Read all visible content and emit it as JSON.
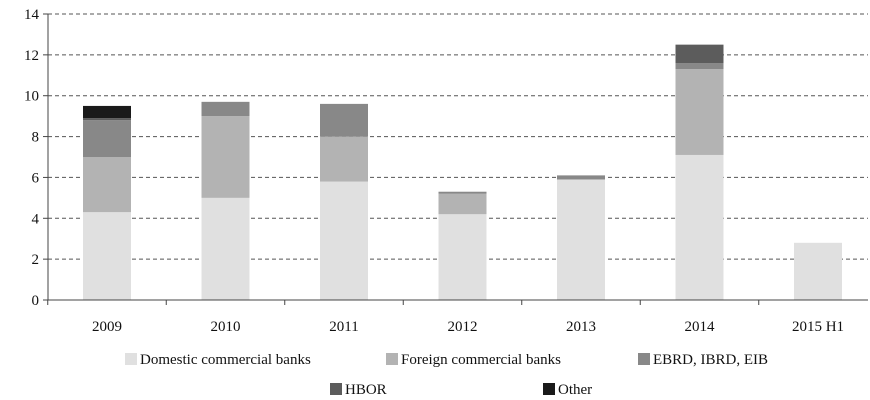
{
  "chart_data": {
    "type": "bar",
    "stacked": true,
    "categories": [
      "2009",
      "2010",
      "2011",
      "2012",
      "2013",
      "2014",
      "2015 H1"
    ],
    "series": [
      {
        "name": "Domestic commercial banks",
        "color": "#e0e0e0",
        "values": [
          4.3,
          5.0,
          5.8,
          4.2,
          5.9,
          7.1,
          2.8
        ]
      },
      {
        "name": "Foreign commercial banks",
        "color": "#b3b3b3",
        "values": [
          2.7,
          4.0,
          2.2,
          1.0,
          0.0,
          4.2,
          0.0
        ]
      },
      {
        "name": "EBRD, IBRD, EIB",
        "color": "#888888",
        "values": [
          1.8,
          0.7,
          1.6,
          0.1,
          0.2,
          0.3,
          0.0
        ]
      },
      {
        "name": "HBOR",
        "color": "#5c5c5c",
        "values": [
          0.1,
          0.0,
          0.0,
          0.0,
          0.0,
          0.9,
          0.0
        ]
      },
      {
        "name": "Other",
        "color": "#1a1a1a",
        "values": [
          0.6,
          0.0,
          0.0,
          0.0,
          0.0,
          0.0,
          0.0
        ]
      }
    ],
    "ylim": [
      0,
      14
    ],
    "yticks": [
      "0",
      "2",
      "4",
      "6",
      "8",
      "10",
      "12",
      "14"
    ],
    "grid": "horizontal-dashed",
    "legend_position": "bottom"
  }
}
